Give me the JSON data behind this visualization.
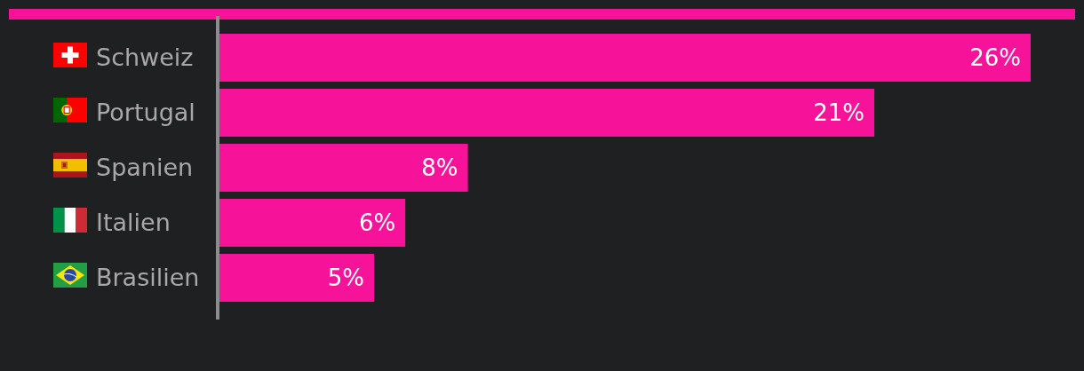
{
  "chart_data": {
    "type": "bar",
    "orientation": "horizontal",
    "categories": [
      "Schweiz",
      "Portugal",
      "Spanien",
      "Italien",
      "Brasilien"
    ],
    "values": [
      26,
      21,
      8,
      6,
      5
    ],
    "color": "#f71399",
    "value_labels": [
      "26%",
      "21%",
      "8%",
      "6%",
      "5%"
    ],
    "tick_labels": "y"
  }
}
